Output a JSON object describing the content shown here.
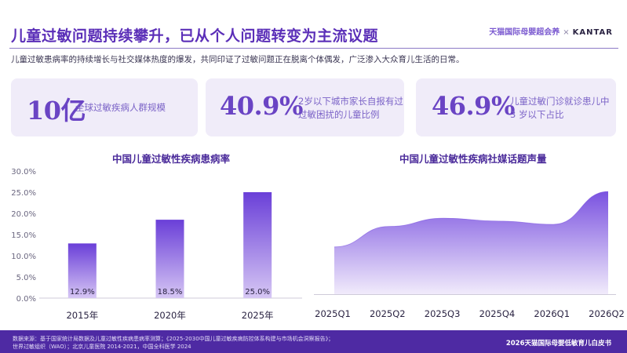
{
  "header": {
    "title": "儿童过敏问题持续攀升，已从个人问题转变为主流议题",
    "brand_primary": "天猫国际母婴超会养",
    "brand_separator": "×",
    "brand_partner": "KANTAR"
  },
  "subtitle": "儿童过敏患病率的持续增长与社交媒体热度的爆发，共同印证了过敏问题正在脱离个体偶发，广泛渗入大众育儿生活的日常。",
  "stats": [
    {
      "value": "10亿",
      "desc_lines": [
        "全球过敏疾病人群规模"
      ]
    },
    {
      "value": "40.9%",
      "desc_lines": [
        "2岁以下城市家长自报有过",
        "过敏困扰的儿童比例"
      ]
    },
    {
      "value": "46.9%",
      "desc_lines": [
        "儿童过敏门诊就诊患儿中",
        "3 岁以下占比"
      ]
    }
  ],
  "colors": {
    "accent": "#6a44c4",
    "bar_top": "#6a3fd8",
    "bar_bottom": "#d6c6f4",
    "area_top": "#7a52e0",
    "area_bottom": "#f1ebfb",
    "footer": "#4e2aa3"
  },
  "chart_data": [
    {
      "type": "bar",
      "title": "中国儿童过敏性疾病患病率",
      "categories": [
        "2015年",
        "2020年",
        "2025年"
      ],
      "values": [
        12.9,
        18.5,
        25.0
      ],
      "data_labels": [
        "12.9%",
        "18.5%",
        "25.0%"
      ],
      "yticks": [
        "0.0%",
        "5.0%",
        "10.0%",
        "15.0%",
        "20.0%",
        "25.0%",
        "30.0%"
      ],
      "ylim": [
        0,
        30
      ],
      "grid": false,
      "legend": "none"
    },
    {
      "type": "area",
      "title": "中国儿童过敏性疾病社媒话题声量",
      "categories": [
        "2025Q1",
        "2025Q2",
        "2025Q3",
        "2025Q4",
        "2026Q1",
        "2026Q2"
      ],
      "values": [
        11.5,
        16.5,
        18.5,
        17.8,
        17.0,
        25.0
      ],
      "ylim": [
        0,
        30
      ],
      "grid": false,
      "legend": "none"
    }
  ],
  "footer": {
    "note_lines": [
      "数据来源：基于国家统计局数据及儿童过敏性疾病患病率测算；《2025-2030中国儿童过敏疾病防控体系构建与市场机会洞察报告》；",
      "世界过敏组织（WAO）；北京儿童医院 2014-2021，中国全科医学 2024"
    ],
    "right_text": "2026天猫国际母婴低敏育儿白皮书"
  }
}
